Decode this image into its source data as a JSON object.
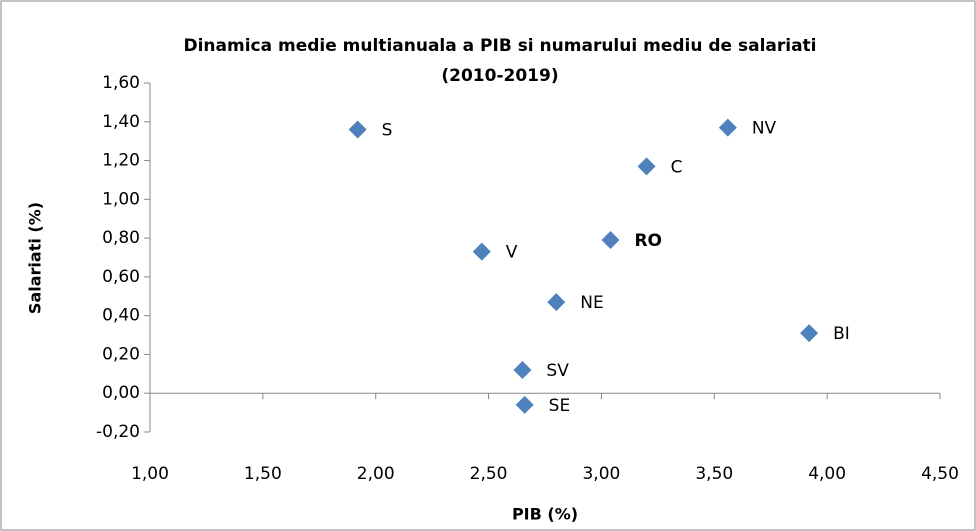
{
  "chart_data": {
    "type": "scatter",
    "title": [
      "Dinamica medie multianuala a PIB si numarului mediu de salariati",
      "(2010-2019)"
    ],
    "x_label": "PIB (%)",
    "y_label": "Salariati (%)",
    "xlim": [
      1.0,
      4.5
    ],
    "xticks": [
      {
        "value": 1.0,
        "label": "1,00"
      },
      {
        "value": 1.5,
        "label": "1,50"
      },
      {
        "value": 2.0,
        "label": "2,00"
      },
      {
        "value": 2.5,
        "label": "2,50"
      },
      {
        "value": 3.0,
        "label": "3,00"
      },
      {
        "value": 3.5,
        "label": "3,50"
      },
      {
        "value": 4.0,
        "label": "4,00"
      },
      {
        "value": 4.5,
        "label": "4,50"
      }
    ],
    "ylim": [
      -0.2,
      1.6
    ],
    "yticks": [
      {
        "value": -0.2,
        "label": "-0,20"
      },
      {
        "value": 0.0,
        "label": "0,00"
      },
      {
        "value": 0.2,
        "label": "0,20"
      },
      {
        "value": 0.4,
        "label": "0,40"
      },
      {
        "value": 0.6,
        "label": "0,60"
      },
      {
        "value": 0.8,
        "label": "0,80"
      },
      {
        "value": 1.0,
        "label": "1,00"
      },
      {
        "value": 1.2,
        "label": "1,20"
      },
      {
        "value": 1.4,
        "label": "1,40"
      },
      {
        "value": 1.6,
        "label": "1,60"
      }
    ],
    "series": [
      {
        "color": "#4f81bd",
        "x": [
          1.92,
          3.56,
          3.2,
          3.04,
          2.47,
          2.8,
          3.92,
          2.65,
          2.66
        ],
        "values": [
          1.36,
          1.37,
          1.17,
          0.79,
          0.73,
          0.47,
          0.31,
          0.12,
          -0.06
        ],
        "point_labels": [
          "S",
          "NV",
          "C",
          "RO",
          "V",
          "NE",
          "BI",
          "SV",
          "SE"
        ],
        "bold": [
          false,
          false,
          false,
          true,
          false,
          false,
          false,
          false,
          false
        ]
      }
    ]
  }
}
